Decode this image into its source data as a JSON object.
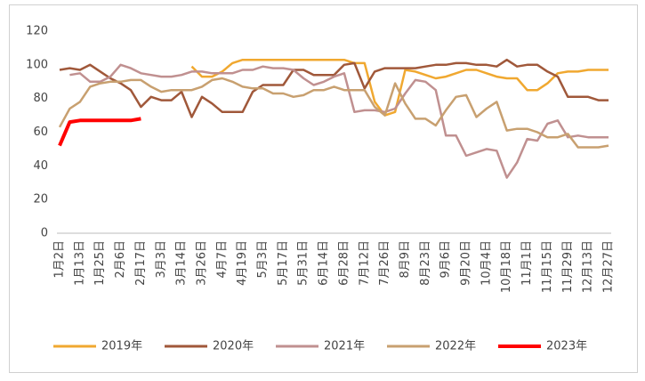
{
  "chart_data": {
    "type": "line",
    "categories": [
      "1月2日",
      null,
      "1月13日",
      null,
      "1月25日",
      null,
      "2月6日",
      null,
      "2月17日",
      null,
      "3月3日",
      null,
      "3月14日",
      null,
      "3月26日",
      null,
      "4月7日",
      null,
      "4月19日",
      null,
      "5月3日",
      null,
      "5月17日",
      null,
      "5月31日",
      null,
      "6月14日",
      null,
      "6月28日",
      null,
      "7月12日",
      null,
      "7月26日",
      null,
      "8月9日",
      null,
      "8月23日",
      null,
      "9月6日",
      null,
      "9月20日",
      null,
      "10月4日",
      null,
      "10月18日",
      null,
      "11月1日",
      null,
      "11月15日",
      null,
      "11月29日",
      null,
      "12月13日",
      null,
      "12月27日"
    ],
    "series": [
      {
        "name": "2019年",
        "color": "#f0a830",
        "values": [
          null,
          null,
          null,
          null,
          null,
          null,
          null,
          null,
          null,
          null,
          null,
          null,
          null,
          99,
          93,
          93,
          96,
          101,
          103,
          103,
          103,
          103,
          103,
          103,
          103,
          103,
          103,
          103,
          103,
          101,
          101,
          78,
          70,
          72,
          97,
          96,
          94,
          92,
          93,
          95,
          97,
          97,
          95,
          93,
          92,
          92,
          85,
          85,
          89,
          95,
          96,
          96,
          97,
          97,
          97
        ]
      },
      {
        "name": "2020年",
        "color": "#a0583a",
        "values": [
          97,
          98,
          97,
          100,
          96,
          92,
          89,
          85,
          75,
          81,
          79,
          79,
          84,
          69,
          81,
          77,
          72,
          72,
          72,
          84,
          88,
          88,
          88,
          97,
          97,
          94,
          94,
          94,
          100,
          101,
          86,
          96,
          98,
          98,
          98,
          98,
          99,
          100,
          100,
          101,
          101,
          100,
          100,
          99,
          103,
          99,
          100,
          100,
          96,
          93,
          81,
          81,
          81,
          79,
          79
        ]
      },
      {
        "name": "2021年",
        "color": "#c09090",
        "values": [
          null,
          94,
          95,
          90,
          90,
          93,
          100,
          98,
          95,
          94,
          93,
          93,
          94,
          96,
          96,
          95,
          95,
          95,
          97,
          97,
          99,
          98,
          98,
          97,
          92,
          88,
          90,
          93,
          95,
          72,
          73,
          73,
          72,
          74,
          83,
          91,
          90,
          85,
          58,
          58,
          46,
          48,
          50,
          49,
          33,
          42,
          56,
          55,
          65,
          67,
          57,
          58,
          57,
          57,
          57
        ]
      },
      {
        "name": "2022年",
        "color": "#c8a070",
        "values": [
          63,
          74,
          78,
          87,
          89,
          90,
          90,
          91,
          91,
          87,
          84,
          85,
          85,
          85,
          87,
          91,
          92,
          90,
          87,
          86,
          86,
          83,
          83,
          81,
          82,
          85,
          85,
          87,
          85,
          85,
          85,
          75,
          70,
          89,
          77,
          68,
          68,
          64,
          73,
          81,
          82,
          69,
          74,
          78,
          61,
          62,
          62,
          60,
          57,
          57,
          59,
          51,
          51,
          51,
          52
        ]
      },
      {
        "name": "2023年",
        "color": "#ff0000",
        "values": [
          52,
          66,
          67,
          67,
          67,
          67,
          67,
          67,
          68,
          null,
          null,
          null,
          null,
          null,
          null,
          null,
          null,
          null,
          null,
          null,
          null,
          null,
          null,
          null,
          null,
          null,
          null,
          null,
          null,
          null,
          null,
          null,
          null,
          null,
          null,
          null,
          null,
          null,
          null,
          null,
          null,
          null,
          null,
          null,
          null,
          null,
          null,
          null,
          null,
          null,
          null,
          null,
          null,
          null,
          null
        ]
      }
    ],
    "ylim": [
      0,
      120
    ],
    "yticks": [
      0,
      20,
      40,
      60,
      80,
      100,
      120
    ],
    "grid": false,
    "legend": "bottom"
  }
}
